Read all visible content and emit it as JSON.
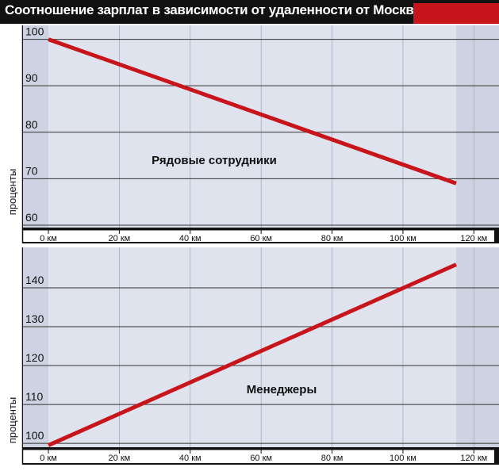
{
  "title": "Соотношение зарплат в зависимости от удаленности от Москвы",
  "colors": {
    "accent": "#c8151b",
    "line": "#c8151b",
    "plot_bg": "#cdd3e2",
    "plot_bg_light": "#dfe3ee",
    "title_bg": "#111111"
  },
  "chart_data": [
    {
      "type": "line",
      "annotation": "Рядовые сотрудники",
      "ylabel": "проценты",
      "xlabel": "",
      "xlim": [
        0,
        125
      ],
      "ylim": [
        60,
        103
      ],
      "x_ticks": [
        0,
        20,
        40,
        60,
        80,
        100,
        120
      ],
      "x_tick_labels": [
        "0 км",
        "20 км",
        "40 км",
        "60 км",
        "80 км",
        "100 км",
        "120 км"
      ],
      "y_ticks": [
        60,
        70,
        80,
        90,
        100
      ],
      "y_tick_labels": [
        "60",
        "70",
        "80",
        "90",
        "100"
      ],
      "grid": true,
      "shaded_x_range": [
        0,
        115
      ],
      "series": [
        {
          "x": [
            0,
            115
          ],
          "y": [
            100,
            69
          ]
        }
      ]
    },
    {
      "type": "line",
      "annotation": "Менеджеры",
      "ylabel": "проценты",
      "xlabel": "",
      "xlim": [
        0,
        125
      ],
      "ylim": [
        99,
        150
      ],
      "x_ticks": [
        0,
        20,
        40,
        60,
        80,
        100,
        120
      ],
      "x_tick_labels": [
        "0 км",
        "20 км",
        "40 км",
        "60 км",
        "80 км",
        "100 км",
        "120 км"
      ],
      "y_ticks": [
        100,
        110,
        120,
        130,
        140
      ],
      "y_tick_labels": [
        "100",
        "110",
        "120",
        "130",
        "140"
      ],
      "grid": true,
      "shaded_x_range": [
        0,
        115
      ],
      "series": [
        {
          "x": [
            0,
            115
          ],
          "y": [
            99.5,
            146
          ]
        }
      ]
    }
  ]
}
